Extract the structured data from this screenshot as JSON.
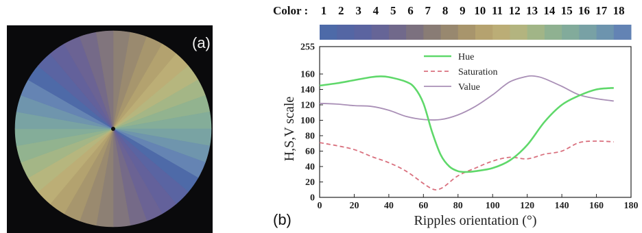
{
  "panel_a": {
    "label": "(a)",
    "wheel_colors": [
      "#4e6aa8",
      "#5a64a2",
      "#63619b",
      "#6b6394",
      "#756a88",
      "#81757d",
      "#8d8074",
      "#9a8a6f",
      "#a7966d",
      "#b3a26f",
      "#bcae76",
      "#b6b67e",
      "#a4b686",
      "#92b38f",
      "#84ad99",
      "#79a3a3",
      "#6f95ad",
      "#6584b3"
    ]
  },
  "panel_b": {
    "label": "(b)",
    "color_title": "Color :",
    "color_numbers": [
      "1",
      "2",
      "3",
      "4",
      "5",
      "6",
      "7",
      "8",
      "9",
      "10",
      "11",
      "12",
      "13",
      "14",
      "15",
      "16",
      "17",
      "18"
    ],
    "strip_colors": [
      "#4d6aa8",
      "#5466a4",
      "#5b64a0",
      "#666597",
      "#71698b",
      "#7c717f",
      "#897c75",
      "#98886f",
      "#a8956c",
      "#b5a26f",
      "#bbad76",
      "#b3b47f",
      "#a1b587",
      "#8fb191",
      "#82ab9b",
      "#78a1a5",
      "#6d94ae",
      "#6383b4"
    ]
  },
  "chart_data": {
    "type": "line",
    "xlabel": "Ripples orientation (°)",
    "ylabel": "H,S,V scale",
    "xlim": [
      0,
      180
    ],
    "ylim": [
      0,
      255
    ],
    "x_ticks": [
      0,
      20,
      40,
      60,
      80,
      100,
      120,
      140,
      160,
      180
    ],
    "y_ticks": [
      0,
      20,
      40,
      60,
      80,
      100,
      120,
      140,
      160,
      255
    ],
    "legend_position": "top-center",
    "series": [
      {
        "name": "Hue",
        "color": "#5fd86a",
        "style": "solid",
        "x": [
          0,
          10,
          20,
          30,
          35,
          40,
          50,
          55,
          60,
          65,
          70,
          75,
          80,
          85,
          90,
          100,
          110,
          120,
          130,
          140,
          150,
          160,
          170
        ],
        "y": [
          145,
          148,
          152,
          156,
          157,
          156,
          150,
          142,
          122,
          85,
          55,
          40,
          34,
          33,
          34,
          38,
          48,
          68,
          98,
          120,
          132,
          140,
          142
        ]
      },
      {
        "name": "Saturation",
        "color": "#d9707e",
        "style": "dashed",
        "x": [
          0,
          10,
          20,
          30,
          40,
          50,
          60,
          65,
          68,
          72,
          80,
          90,
          100,
          110,
          120,
          130,
          140,
          150,
          160,
          170
        ],
        "y": [
          71,
          67,
          62,
          53,
          45,
          34,
          18,
          11,
          10,
          14,
          28,
          38,
          47,
          52,
          50,
          56,
          60,
          71,
          73,
          72
        ]
      },
      {
        "name": "Value",
        "color": "#a98fb6",
        "style": "solid",
        "x": [
          0,
          10,
          20,
          30,
          40,
          50,
          60,
          70,
          80,
          90,
          100,
          110,
          120,
          125,
          130,
          140,
          150,
          160,
          170
        ],
        "y": [
          122,
          121,
          119,
          118,
          113,
          105,
          101,
          101,
          107,
          118,
          133,
          150,
          157,
          157,
          154,
          144,
          133,
          128,
          125
        ]
      }
    ]
  }
}
